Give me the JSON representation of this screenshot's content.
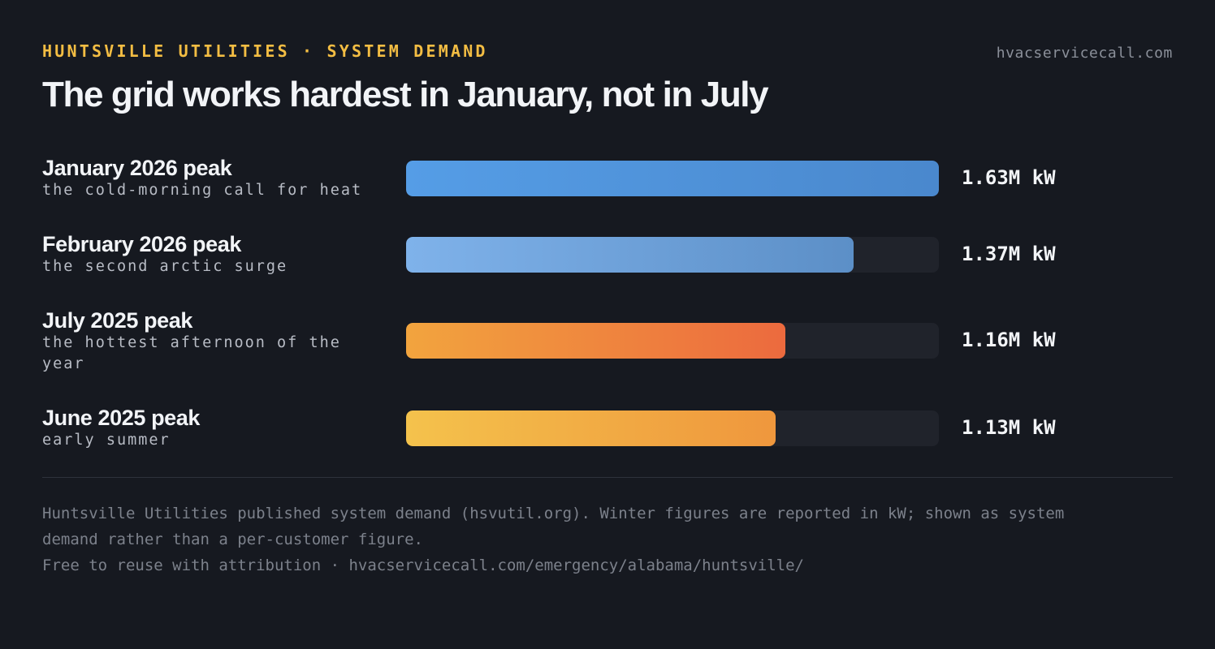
{
  "header": {
    "eyebrow": "HUNTSVILLE UTILITIES · SYSTEM DEMAND",
    "site": "hvacservicecall.com",
    "title": "The grid works hardest in January, not in July"
  },
  "chart_data": {
    "type": "bar",
    "orientation": "horizontal",
    "title": "The grid works hardest in January, not in July",
    "unit": "kW",
    "xlim": [
      0,
      1630000
    ],
    "categories": [
      "January 2026 peak",
      "February 2026 peak",
      "July 2025 peak",
      "June 2025 peak"
    ],
    "subtitles": [
      "the cold-morning call for heat",
      "the second arctic surge",
      "the hottest afternoon of the year",
      "early summer"
    ],
    "values": [
      1630000,
      1370000,
      1160000,
      1130000
    ],
    "value_labels": [
      "1.63M kW",
      "1.37M kW",
      "1.16M kW",
      "1.13M kW"
    ],
    "colors": [
      [
        "#559de6",
        "#4a88cd"
      ],
      [
        "#7fb2ea",
        "#5c8fc7"
      ],
      [
        "#f2a43e",
        "#ec6a3e"
      ],
      [
        "#f4c24c",
        "#ef973d"
      ]
    ],
    "track_color": "#20232b"
  },
  "footer": {
    "source_line1": "Huntsville Utilities published system demand (hsvutil.org). Winter figures are reported in kW; shown as system",
    "source_line2": "demand rather than a per-customer figure.",
    "attribution": "Free to reuse with attribution · hvacservicecall.com/emergency/alabama/huntsville/"
  }
}
